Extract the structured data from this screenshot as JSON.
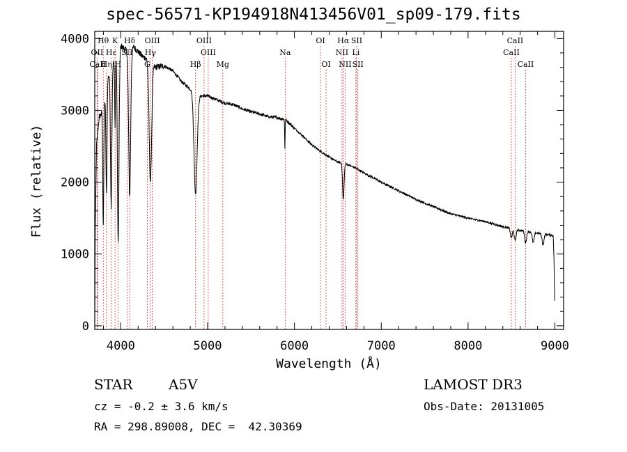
{
  "chart_data": {
    "type": "line",
    "title": "spec-56571-KP194918N413456V01_sp09-179.fits",
    "xlabel": "Wavelength (Å)",
    "ylabel": "Flux (relative)",
    "xlim": [
      3700,
      9100
    ],
    "ylim": [
      -50,
      4100
    ],
    "xticks": [
      4000,
      5000,
      6000,
      7000,
      8000,
      9000
    ],
    "yticks": [
      0,
      1000,
      2000,
      3000,
      4000
    ],
    "continuum": [
      [
        3700,
        0
      ],
      [
        3705,
        1200
      ],
      [
        3720,
        2500
      ],
      [
        3750,
        2900
      ],
      [
        3800,
        3000
      ],
      [
        3850,
        3450
      ],
      [
        3900,
        3600
      ],
      [
        3950,
        3800
      ],
      [
        4000,
        3900
      ],
      [
        4050,
        3850
      ],
      [
        4100,
        3800
      ],
      [
        4150,
        3880
      ],
      [
        4200,
        3820
      ],
      [
        4250,
        3750
      ],
      [
        4300,
        3720
      ],
      [
        4350,
        3650
      ],
      [
        4400,
        3600
      ],
      [
        4500,
        3620
      ],
      [
        4600,
        3550
      ],
      [
        4700,
        3400
      ],
      [
        4800,
        3300
      ],
      [
        4900,
        3200
      ],
      [
        5000,
        3200
      ],
      [
        5100,
        3150
      ],
      [
        5200,
        3100
      ],
      [
        5300,
        3080
      ],
      [
        5400,
        3020
      ],
      [
        5500,
        2980
      ],
      [
        5600,
        2950
      ],
      [
        5700,
        2910
      ],
      [
        5800,
        2900
      ],
      [
        5900,
        2870
      ],
      [
        6000,
        2750
      ],
      [
        6100,
        2640
      ],
      [
        6200,
        2520
      ],
      [
        6300,
        2430
      ],
      [
        6400,
        2350
      ],
      [
        6500,
        2280
      ],
      [
        6600,
        2250
      ],
      [
        6700,
        2200
      ],
      [
        6800,
        2130
      ],
      [
        7000,
        2000
      ],
      [
        7200,
        1880
      ],
      [
        7400,
        1760
      ],
      [
        7600,
        1660
      ],
      [
        7800,
        1560
      ],
      [
        8000,
        1500
      ],
      [
        8200,
        1450
      ],
      [
        8400,
        1380
      ],
      [
        8600,
        1330
      ],
      [
        8800,
        1290
      ],
      [
        8980,
        1260
      ],
      [
        8990,
        900
      ],
      [
        9000,
        200
      ]
    ],
    "absorption_lines": [
      {
        "center": 3798,
        "depth": 1600,
        "width": 8
      },
      {
        "center": 3835,
        "depth": 1500,
        "width": 9
      },
      {
        "center": 3889,
        "depth": 1900,
        "width": 11
      },
      {
        "center": 3934,
        "depth": 1000,
        "width": 6
      },
      {
        "center": 3970,
        "depth": 2700,
        "width": 13
      },
      {
        "center": 4102,
        "depth": 2000,
        "width": 16
      },
      {
        "center": 4341,
        "depth": 1650,
        "width": 20
      },
      {
        "center": 4861,
        "depth": 1400,
        "width": 25
      },
      {
        "center": 5890,
        "depth": 400,
        "width": 4
      },
      {
        "center": 6563,
        "depth": 500,
        "width": 12
      },
      {
        "center": 8498,
        "depth": 130,
        "width": 15
      },
      {
        "center": 8542,
        "depth": 160,
        "width": 15
      },
      {
        "center": 8662,
        "depth": 160,
        "width": 15
      },
      {
        "center": 8750,
        "depth": 140,
        "width": 15
      },
      {
        "center": 8863,
        "depth": 150,
        "width": 15
      }
    ],
    "spectral_lines": [
      {
        "label": "Hθ",
        "wavelength": 3798,
        "row": 1
      },
      {
        "label": "OII",
        "wavelength": 3727,
        "row": 2
      },
      {
        "label": "CaII",
        "wavelength": 3734,
        "row": 3
      },
      {
        "label": "Hη",
        "wavelength": 3835,
        "row": 3
      },
      {
        "label": "K",
        "wavelength": 3934,
        "row": 1
      },
      {
        "label": "Hε",
        "wavelength": 3889,
        "row": 2
      },
      {
        "label": "H",
        "wavelength": 3968,
        "row": 3
      },
      {
        "label": "Hδ",
        "wavelength": 4102,
        "row": 1
      },
      {
        "label": "SII",
        "wavelength": 4072,
        "row": 2
      },
      {
        "label": "OIII",
        "wavelength": 4363,
        "row": 1
      },
      {
        "label": "Hγ",
        "wavelength": 4341,
        "row": 2
      },
      {
        "label": "G",
        "wavelength": 4305,
        "row": 3
      },
      {
        "label": "OIII",
        "wavelength": 4959,
        "row": 1
      },
      {
        "label": "OIII",
        "wavelength": 5007,
        "row": 2
      },
      {
        "label": "Hβ",
        "wavelength": 4861,
        "row": 3
      },
      {
        "label": "Mg",
        "wavelength": 5175,
        "row": 3
      },
      {
        "label": "Na",
        "wavelength": 5893,
        "row": 2
      },
      {
        "label": "OI",
        "wavelength": 6300,
        "row": 1
      },
      {
        "label": "OI",
        "wavelength": 6364,
        "row": 3
      },
      {
        "label": "Hα",
        "wavelength": 6563,
        "row": 1
      },
      {
        "label": "NII",
        "wavelength": 6548,
        "row": 2
      },
      {
        "label": "NII",
        "wavelength": 6584,
        "row": 3
      },
      {
        "label": "SII",
        "wavelength": 6717,
        "row": 1
      },
      {
        "label": "Li",
        "wavelength": 6708,
        "row": 2
      },
      {
        "label": "SII",
        "wavelength": 6731,
        "row": 3
      },
      {
        "label": "CaII",
        "wavelength": 8542,
        "row": 1
      },
      {
        "label": "CaII",
        "wavelength": 8498,
        "row": 2
      },
      {
        "label": "CaII",
        "wavelength": 8662,
        "row": 3
      }
    ]
  },
  "info": {
    "object_class": "STAR",
    "subclass": "A5V",
    "survey": "LAMOST DR3",
    "redshift": "cz = -0.2 ± 3.6 km/s",
    "obs_date": "Obs-Date: 20131005",
    "coords": "RA = 298.89008, DEC =  42.30369"
  },
  "colors": {
    "spectrum": "#000000",
    "line_markers": "#cc3333"
  }
}
